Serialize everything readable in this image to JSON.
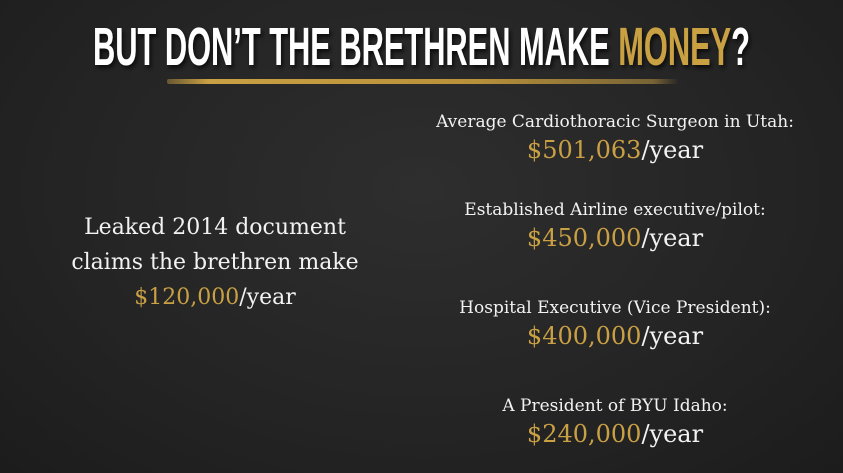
{
  "title": {
    "main": "BUT DON’T THE BRETHREN MAKE ",
    "highlight": "MONEY",
    "end": "?"
  },
  "colors": {
    "accent": "#c9a043",
    "text": "#f2f2f2",
    "background": "#262626"
  },
  "left": {
    "line1": "Leaked 2014 document",
    "line2": "claims the brethren make",
    "amount": "$120,000",
    "unit": "/year"
  },
  "comparisons": [
    {
      "label": "Average Cardiothoracic Surgeon in Utah:",
      "amount": "$501,063",
      "unit": "/year"
    },
    {
      "label": "Established Airline executive/pilot:",
      "amount": "$450,000",
      "unit": "/year"
    },
    {
      "label": "Hospital Executive (Vice President):",
      "amount": "$400,000",
      "unit": "/year"
    },
    {
      "label": "A President of BYU Idaho:",
      "amount": "$240,000",
      "unit": "/year"
    }
  ]
}
